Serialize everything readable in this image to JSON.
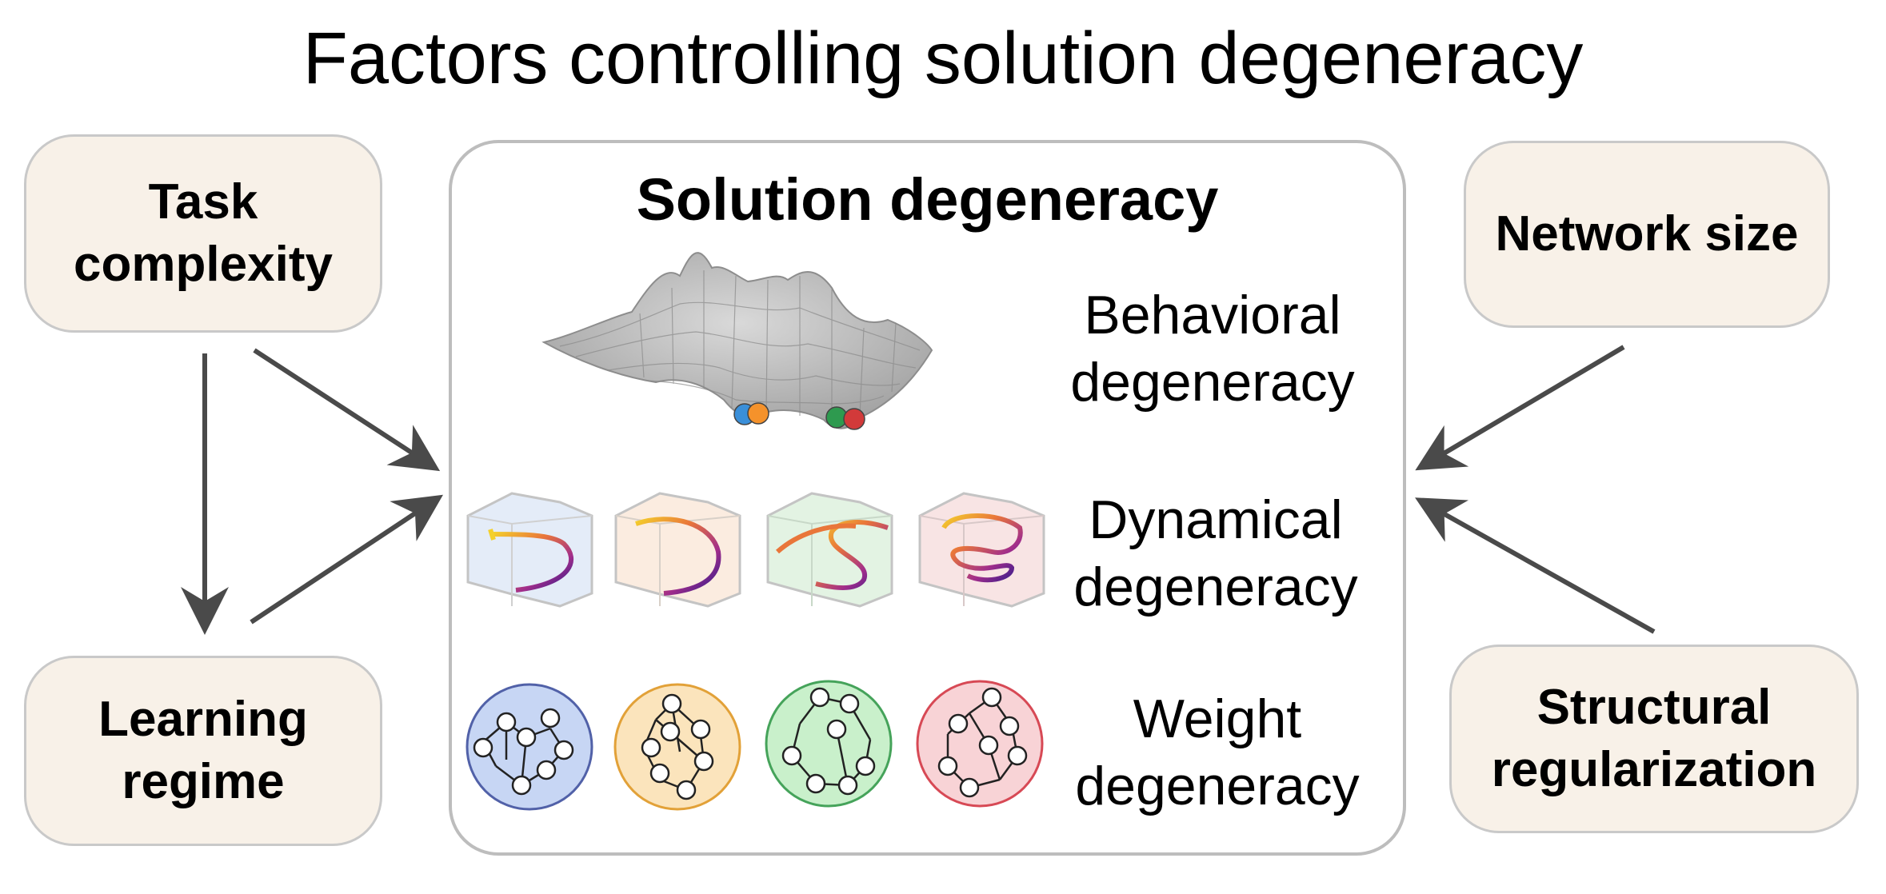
{
  "title": "Factors controlling solution degeneracy",
  "factors": {
    "task_complexity": "Task\ncomplexity",
    "learning_regime": "Learning\nregime",
    "network_size": "Network size",
    "structural_regularization": "Structural\nregularization"
  },
  "center": {
    "title": "Solution degeneracy",
    "behavioral": "Behavioral\ndegeneracy",
    "dynamical": "Dynamical\ndegeneracy",
    "weight": "Weight\ndegeneracy"
  },
  "colors": {
    "factor_fill": "#f8f1e8",
    "arrow": "#4a4a4a",
    "ball_blue": "#3a8fd9",
    "ball_orange": "#f5922b",
    "ball_green": "#2e9a4f",
    "ball_red": "#d23a3a",
    "panel_blue": "#e4ecf8",
    "panel_orange": "#fbece0",
    "panel_green": "#e3f3e3",
    "panel_red": "#f8e4e4",
    "circle_blue": "#c7d6f4",
    "circle_orange": "#fbe4bc",
    "circle_green": "#c9f0cb",
    "circle_red": "#f8d3d6"
  },
  "icons": [
    "loss-landscape-icon",
    "trajectory-icon",
    "network-graph-icon",
    "arrow-icon"
  ]
}
